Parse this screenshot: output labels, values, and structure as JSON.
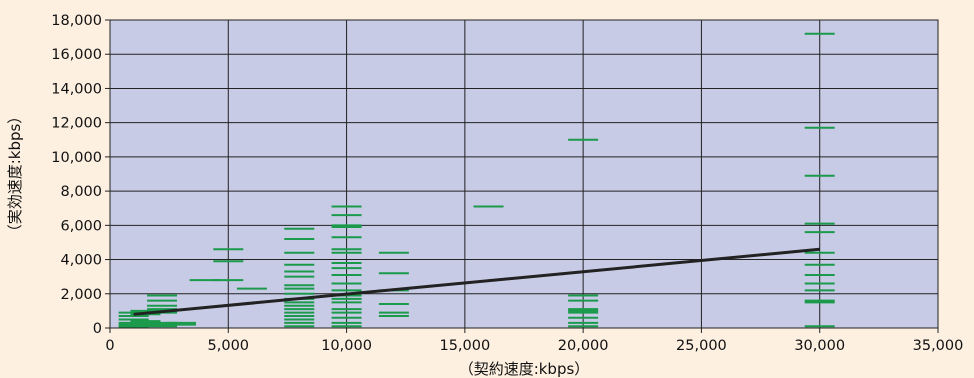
{
  "chart_data": {
    "type": "scatter",
    "title": "",
    "xlabel": "（契約速度:kbps）",
    "ylabel": "（実効速度:kbps）",
    "xlim": [
      0,
      35000
    ],
    "ylim": [
      0,
      18000
    ],
    "x_ticks": [
      0,
      5000,
      10000,
      15000,
      20000,
      25000,
      30000,
      35000
    ],
    "x_tick_labels": [
      "0",
      "5,000",
      "10,000",
      "15,000",
      "20,000",
      "25,000",
      "30,000",
      "35,000"
    ],
    "y_ticks": [
      0,
      2000,
      4000,
      6000,
      8000,
      10000,
      12000,
      14000,
      16000,
      18000
    ],
    "y_tick_labels": [
      "0",
      "2,000",
      "4,000",
      "6,000",
      "8,000",
      "10,000",
      "12,000",
      "14,000",
      "16,000",
      "18,000"
    ],
    "grid": true,
    "legend": false,
    "marker": "dash",
    "colors": {
      "background": "#fdf0e1",
      "plot_area": "#c8cbe6",
      "points": "#1a9a4a",
      "trendline": "#222222",
      "grid": "#222222"
    },
    "points": [
      {
        "x": 1000,
        "y": 900
      },
      {
        "x": 1000,
        "y": 700
      },
      {
        "x": 1000,
        "y": 500
      },
      {
        "x": 1000,
        "y": 300
      },
      {
        "x": 1000,
        "y": 200
      },
      {
        "x": 1000,
        "y": 100
      },
      {
        "x": 1000,
        "y": 50
      },
      {
        "x": 1500,
        "y": 1000
      },
      {
        "x": 1500,
        "y": 800
      },
      {
        "x": 1500,
        "y": 400
      },
      {
        "x": 1500,
        "y": 300
      },
      {
        "x": 1500,
        "y": 150
      },
      {
        "x": 2200,
        "y": 1900
      },
      {
        "x": 2200,
        "y": 1600
      },
      {
        "x": 2200,
        "y": 1300
      },
      {
        "x": 2200,
        "y": 1100
      },
      {
        "x": 2200,
        "y": 1000
      },
      {
        "x": 2200,
        "y": 900
      },
      {
        "x": 2200,
        "y": 300
      },
      {
        "x": 2200,
        "y": 200
      },
      {
        "x": 2200,
        "y": 100
      },
      {
        "x": 3000,
        "y": 300
      },
      {
        "x": 3000,
        "y": 200
      },
      {
        "x": 4000,
        "y": 2800
      },
      {
        "x": 5000,
        "y": 4600
      },
      {
        "x": 5000,
        "y": 3900
      },
      {
        "x": 5000,
        "y": 2800
      },
      {
        "x": 6000,
        "y": 2300
      },
      {
        "x": 8000,
        "y": 5800
      },
      {
        "x": 8000,
        "y": 5200
      },
      {
        "x": 8000,
        "y": 4400
      },
      {
        "x": 8000,
        "y": 3700
      },
      {
        "x": 8000,
        "y": 3300
      },
      {
        "x": 8000,
        "y": 3000
      },
      {
        "x": 8000,
        "y": 2500
      },
      {
        "x": 8000,
        "y": 2300
      },
      {
        "x": 8000,
        "y": 2000
      },
      {
        "x": 8000,
        "y": 1700
      },
      {
        "x": 8000,
        "y": 1500
      },
      {
        "x": 8000,
        "y": 1300
      },
      {
        "x": 8000,
        "y": 1100
      },
      {
        "x": 8000,
        "y": 900
      },
      {
        "x": 8000,
        "y": 700
      },
      {
        "x": 8000,
        "y": 500
      },
      {
        "x": 8000,
        "y": 300
      },
      {
        "x": 8000,
        "y": 100
      },
      {
        "x": 10000,
        "y": 7100
      },
      {
        "x": 10000,
        "y": 6600
      },
      {
        "x": 10000,
        "y": 6000
      },
      {
        "x": 10000,
        "y": 5900
      },
      {
        "x": 10000,
        "y": 5300
      },
      {
        "x": 10000,
        "y": 4600
      },
      {
        "x": 10000,
        "y": 4400
      },
      {
        "x": 10000,
        "y": 3800
      },
      {
        "x": 10000,
        "y": 3500
      },
      {
        "x": 10000,
        "y": 3100
      },
      {
        "x": 10000,
        "y": 2600
      },
      {
        "x": 10000,
        "y": 2200
      },
      {
        "x": 10000,
        "y": 1900
      },
      {
        "x": 10000,
        "y": 1700
      },
      {
        "x": 10000,
        "y": 1500
      },
      {
        "x": 10000,
        "y": 1100
      },
      {
        "x": 10000,
        "y": 900
      },
      {
        "x": 10000,
        "y": 600
      },
      {
        "x": 10000,
        "y": 300
      },
      {
        "x": 10000,
        "y": 100
      },
      {
        "x": 12000,
        "y": 4400
      },
      {
        "x": 12000,
        "y": 3200
      },
      {
        "x": 12000,
        "y": 2200
      },
      {
        "x": 12000,
        "y": 1400
      },
      {
        "x": 12000,
        "y": 900
      },
      {
        "x": 12000,
        "y": 700
      },
      {
        "x": 16000,
        "y": 7100
      },
      {
        "x": 20000,
        "y": 11000
      },
      {
        "x": 20000,
        "y": 1900
      },
      {
        "x": 20000,
        "y": 1600
      },
      {
        "x": 20000,
        "y": 1100
      },
      {
        "x": 20000,
        "y": 1000
      },
      {
        "x": 20000,
        "y": 900
      },
      {
        "x": 20000,
        "y": 600
      },
      {
        "x": 20000,
        "y": 300
      },
      {
        "x": 20000,
        "y": 100
      },
      {
        "x": 30000,
        "y": 17200
      },
      {
        "x": 30000,
        "y": 11700
      },
      {
        "x": 30000,
        "y": 8900
      },
      {
        "x": 30000,
        "y": 6100
      },
      {
        "x": 30000,
        "y": 5600
      },
      {
        "x": 30000,
        "y": 4400
      },
      {
        "x": 30000,
        "y": 3700
      },
      {
        "x": 30000,
        "y": 3100
      },
      {
        "x": 30000,
        "y": 2600
      },
      {
        "x": 30000,
        "y": 2200
      },
      {
        "x": 30000,
        "y": 1600
      },
      {
        "x": 30000,
        "y": 1500
      },
      {
        "x": 30000,
        "y": 100
      }
    ],
    "trendline": {
      "x": [
        1000,
        30000
      ],
      "y": [
        800,
        4600
      ]
    }
  }
}
